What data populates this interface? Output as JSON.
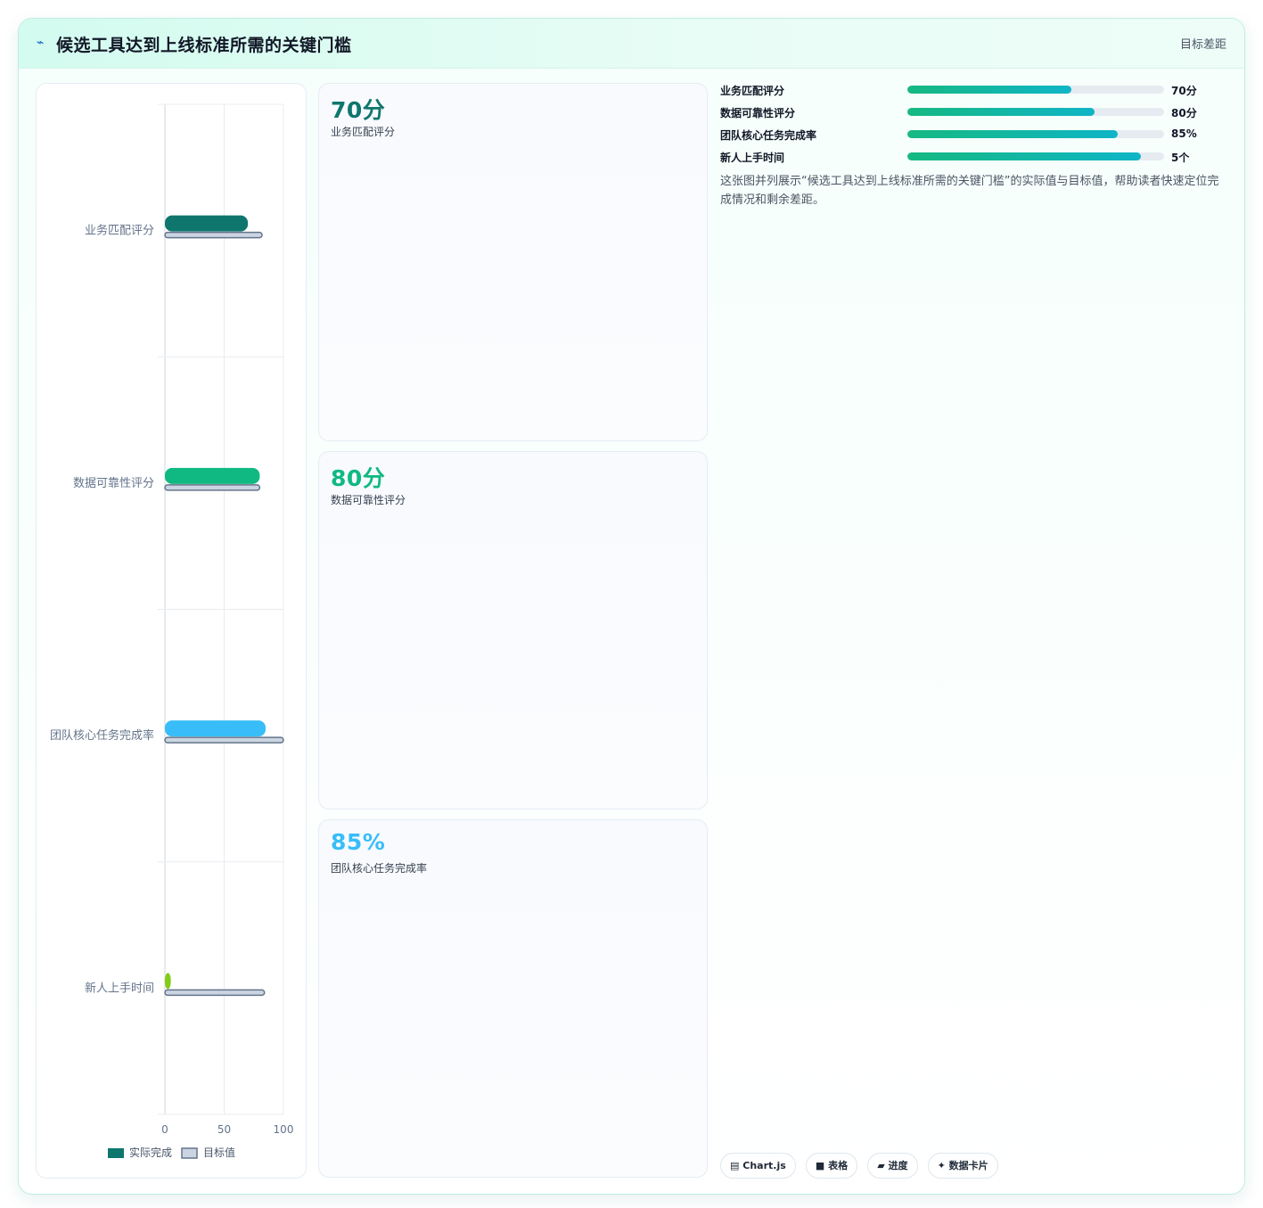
{
  "header": {
    "icon": "pulse-icon",
    "title": "候选工具达到上线标准所需的关键门槛",
    "badge": "目标差距"
  },
  "colors": {
    "teal_dark": "#0f766e",
    "green": "#10b981",
    "sky": "#38bdf8",
    "lime": "#84cc16",
    "target_fill": "#cbd5e1",
    "target_stroke": "#64748b"
  },
  "chart_data": {
    "type": "bar",
    "orientation": "horizontal",
    "categories": [
      "业务匹配评分",
      "数据可靠性评分",
      "团队核心任务完成率",
      "新人上手时间"
    ],
    "series": [
      {
        "name": "实际完成",
        "values": [
          70,
          80,
          85,
          5
        ],
        "colors": [
          "#0f766e",
          "#10b981",
          "#38bdf8",
          "#84cc16"
        ]
      },
      {
        "name": "目标值",
        "values": [
          82,
          80,
          100,
          84
        ]
      }
    ],
    "xlim": [
      0,
      100
    ],
    "xticks": [
      "0",
      "50",
      "100"
    ],
    "grid": true,
    "legend": "bottom"
  },
  "kpis": [
    {
      "value": "70分",
      "label": "业务匹配评分",
      "color": "#0f766e"
    },
    {
      "value": "80分",
      "label": "数据可靠性评分",
      "color": "#10b981"
    },
    {
      "value": "85%",
      "label": "团队核心任务完成率",
      "color": "#38bdf8"
    }
  ],
  "progress": [
    {
      "name": "业务匹配评分",
      "value_text": "70分",
      "fraction": 0.64
    },
    {
      "name": "数据可靠性评分",
      "value_text": "80分",
      "fraction": 0.73
    },
    {
      "name": "团队核心任务完成率",
      "value_text": "85%",
      "fraction": 0.82
    },
    {
      "name": "新人上手时间",
      "value_text": "5个",
      "fraction": 0.91
    }
  ],
  "description": "这张图并列展示“候选工具达到上线标准所需的关键门槛”的实际值与目标值，帮助读者快速定位完成情况和剩余差距。",
  "tags": [
    {
      "icon": "chart-icon",
      "glyph": "▤",
      "label": "Chart.js"
    },
    {
      "icon": "table-icon",
      "glyph": "■",
      "label": "表格"
    },
    {
      "icon": "progress-icon",
      "glyph": "▰",
      "label": "进度"
    },
    {
      "icon": "sparkle-icon",
      "glyph": "✦",
      "label": "数据卡片"
    }
  ]
}
